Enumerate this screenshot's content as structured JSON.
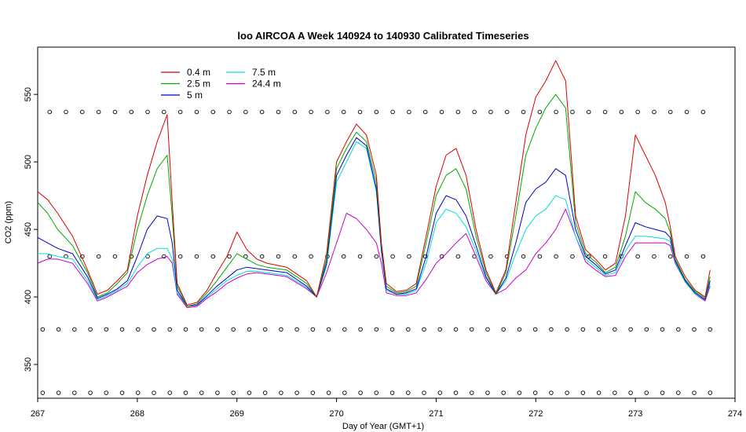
{
  "chart_data": {
    "type": "line",
    "title": "loo AIRCOA A  Week 140924 to 140930  Calibrated Timeseries",
    "xlabel": "Day of Year (GMT+1)",
    "ylabel": "CO2 (ppm)",
    "xlim": [
      267,
      274
    ],
    "ylim": [
      325,
      585
    ],
    "x_ticks": [
      267,
      268,
      269,
      270,
      271,
      272,
      273,
      274
    ],
    "y_ticks": [
      350,
      400,
      450,
      500,
      550
    ],
    "grid": false,
    "legend_position": "top-left",
    "colors": {
      "0.4 m": "#dd0000",
      "2.5 m": "#00aa00",
      "5 m": "#0000cc",
      "7.5 m": "#00dddd",
      "24.4 m": "#cc00cc"
    },
    "series": [
      {
        "name": "0.4 m",
        "color": "#dd0000",
        "x": [
          267.0,
          267.1,
          267.2,
          267.35,
          267.5,
          267.6,
          267.7,
          267.8,
          267.9,
          268.0,
          268.1,
          268.2,
          268.3,
          268.35,
          268.4,
          268.5,
          268.6,
          268.7,
          268.8,
          268.9,
          269.0,
          269.1,
          269.2,
          269.3,
          269.5,
          269.7,
          269.8,
          269.9,
          270.0,
          270.1,
          270.2,
          270.3,
          270.4,
          270.45,
          270.5,
          270.6,
          270.7,
          270.8,
          270.9,
          271.0,
          271.1,
          271.2,
          271.3,
          271.4,
          271.5,
          271.6,
          271.7,
          271.8,
          271.9,
          272.0,
          272.1,
          272.2,
          272.3,
          272.4,
          272.5,
          272.6,
          272.7,
          272.8,
          272.9,
          273.0,
          273.1,
          273.2,
          273.3,
          273.35,
          273.4,
          273.5,
          273.6,
          273.7,
          273.75
        ],
        "y": [
          478,
          472,
          462,
          445,
          420,
          402,
          405,
          412,
          420,
          460,
          490,
          515,
          535,
          470,
          410,
          394,
          396,
          405,
          418,
          430,
          448,
          435,
          428,
          425,
          422,
          412,
          400,
          432,
          500,
          515,
          528,
          520,
          490,
          440,
          410,
          404,
          405,
          410,
          445,
          482,
          505,
          510,
          490,
          450,
          420,
          403,
          420,
          470,
          520,
          548,
          560,
          575,
          560,
          460,
          435,
          428,
          420,
          425,
          460,
          520,
          505,
          490,
          470,
          452,
          430,
          415,
          405,
          400,
          420
        ]
      },
      {
        "name": "2.5 m",
        "color": "#00aa00",
        "x": [
          267.0,
          267.1,
          267.2,
          267.35,
          267.5,
          267.6,
          267.7,
          267.8,
          267.9,
          268.0,
          268.1,
          268.2,
          268.3,
          268.35,
          268.4,
          268.5,
          268.6,
          268.7,
          268.8,
          268.9,
          269.0,
          269.1,
          269.2,
          269.3,
          269.5,
          269.7,
          269.8,
          269.9,
          270.0,
          270.1,
          270.2,
          270.3,
          270.4,
          270.45,
          270.5,
          270.6,
          270.7,
          270.8,
          270.9,
          271.0,
          271.1,
          271.2,
          271.3,
          271.4,
          271.5,
          271.6,
          271.7,
          271.8,
          271.9,
          272.0,
          272.1,
          272.2,
          272.3,
          272.4,
          272.5,
          272.6,
          272.7,
          272.8,
          272.9,
          273.0,
          273.1,
          273.2,
          273.3,
          273.35,
          273.4,
          273.5,
          273.6,
          273.7,
          273.75
        ],
        "y": [
          470,
          462,
          450,
          438,
          418,
          400,
          403,
          410,
          418,
          450,
          475,
          495,
          505,
          460,
          408,
          393,
          395,
          403,
          412,
          422,
          432,
          428,
          424,
          422,
          420,
          410,
          400,
          428,
          495,
          510,
          522,
          515,
          485,
          438,
          408,
          403,
          404,
          408,
          440,
          475,
          490,
          495,
          480,
          445,
          418,
          402,
          418,
          460,
          505,
          525,
          540,
          550,
          540,
          455,
          432,
          426,
          418,
          422,
          445,
          478,
          470,
          465,
          458,
          448,
          428,
          413,
          404,
          399,
          415
        ]
      },
      {
        "name": "5 m",
        "color": "#0000cc",
        "x": [
          267.0,
          267.1,
          267.2,
          267.35,
          267.5,
          267.6,
          267.7,
          267.8,
          267.9,
          268.0,
          268.1,
          268.2,
          268.3,
          268.35,
          268.4,
          268.5,
          268.6,
          268.7,
          268.8,
          268.9,
          269.0,
          269.1,
          269.2,
          269.3,
          269.5,
          269.7,
          269.8,
          269.9,
          270.0,
          270.1,
          270.2,
          270.3,
          270.4,
          270.45,
          270.5,
          270.6,
          270.7,
          270.8,
          270.9,
          271.0,
          271.1,
          271.2,
          271.3,
          271.4,
          271.5,
          271.6,
          271.7,
          271.8,
          271.9,
          272.0,
          272.1,
          272.2,
          272.3,
          272.4,
          272.5,
          272.6,
          272.7,
          272.8,
          272.9,
          273.0,
          273.1,
          273.2,
          273.3,
          273.35,
          273.4,
          273.5,
          273.6,
          273.7,
          273.75
        ],
        "y": [
          444,
          440,
          436,
          432,
          415,
          399,
          402,
          406,
          412,
          430,
          450,
          460,
          458,
          440,
          405,
          393,
          394,
          401,
          408,
          414,
          420,
          422,
          421,
          420,
          418,
          408,
          400,
          425,
          490,
          505,
          518,
          512,
          480,
          435,
          406,
          402,
          403,
          406,
          430,
          462,
          475,
          472,
          460,
          438,
          415,
          402,
          414,
          440,
          470,
          480,
          485,
          495,
          490,
          450,
          430,
          424,
          417,
          420,
          438,
          455,
          452,
          450,
          448,
          444,
          427,
          412,
          403,
          398,
          412
        ]
      },
      {
        "name": "7.5 m",
        "color": "#00dddd",
        "x": [
          267.0,
          267.1,
          267.2,
          267.35,
          267.5,
          267.6,
          267.7,
          267.8,
          267.9,
          268.0,
          268.1,
          268.2,
          268.3,
          268.35,
          268.4,
          268.5,
          268.6,
          268.7,
          268.8,
          268.9,
          269.0,
          269.1,
          269.2,
          269.3,
          269.5,
          269.7,
          269.8,
          269.9,
          270.0,
          270.1,
          270.2,
          270.3,
          270.4,
          270.45,
          270.5,
          270.6,
          270.7,
          270.8,
          270.9,
          271.0,
          271.1,
          271.2,
          271.3,
          271.4,
          271.5,
          271.6,
          271.7,
          271.8,
          271.9,
          272.0,
          272.1,
          272.2,
          272.3,
          272.4,
          272.5,
          272.6,
          272.7,
          272.8,
          272.9,
          273.0,
          273.1,
          273.2,
          273.3,
          273.35,
          273.4,
          273.5,
          273.6,
          273.7,
          273.75
        ],
        "y": [
          432,
          432,
          430,
          428,
          412,
          398,
          401,
          405,
          410,
          422,
          432,
          436,
          436,
          428,
          403,
          393,
          394,
          400,
          406,
          412,
          416,
          419,
          419,
          418,
          416,
          407,
          400,
          423,
          485,
          500,
          515,
          510,
          478,
          433,
          405,
          402,
          402,
          405,
          425,
          455,
          465,
          462,
          452,
          434,
          414,
          402,
          412,
          432,
          450,
          460,
          465,
          475,
          472,
          445,
          428,
          422,
          416,
          418,
          434,
          445,
          445,
          444,
          443,
          441,
          426,
          411,
          402,
          398,
          410
        ]
      },
      {
        "name": "24.4 m",
        "color": "#cc00cc",
        "x": [
          267.0,
          267.1,
          267.2,
          267.35,
          267.5,
          267.6,
          267.7,
          267.8,
          267.9,
          268.0,
          268.1,
          268.2,
          268.3,
          268.35,
          268.4,
          268.5,
          268.6,
          268.7,
          268.8,
          268.9,
          269.0,
          269.1,
          269.2,
          269.3,
          269.5,
          269.7,
          269.8,
          269.9,
          270.0,
          270.1,
          270.2,
          270.3,
          270.4,
          270.45,
          270.5,
          270.6,
          270.7,
          270.8,
          270.9,
          271.0,
          271.1,
          271.2,
          271.3,
          271.4,
          271.5,
          271.6,
          271.7,
          271.8,
          271.9,
          272.0,
          272.1,
          272.2,
          272.3,
          272.4,
          272.5,
          272.6,
          272.7,
          272.8,
          272.9,
          273.0,
          273.1,
          273.2,
          273.3,
          273.35,
          273.4,
          273.5,
          273.6,
          273.7,
          273.75
        ],
        "y": [
          425,
          428,
          428,
          425,
          410,
          397,
          400,
          404,
          408,
          418,
          424,
          428,
          430,
          425,
          402,
          392,
          393,
          399,
          404,
          410,
          414,
          417,
          418,
          417,
          415,
          406,
          400,
          418,
          440,
          462,
          458,
          450,
          440,
          425,
          403,
          401,
          401,
          403,
          413,
          425,
          432,
          440,
          447,
          430,
          412,
          402,
          406,
          414,
          420,
          432,
          440,
          450,
          465,
          445,
          426,
          420,
          415,
          416,
          430,
          440,
          440,
          440,
          440,
          438,
          425,
          411,
          402,
          397,
          408
        ]
      }
    ],
    "marker_rows": [
      {
        "y": 537,
        "x_start": 267.12,
        "x_end": 273.68,
        "count": 41
      },
      {
        "y": 430,
        "x_start": 267.12,
        "x_end": 273.68,
        "count": 41
      },
      {
        "y": 376,
        "x_start": 267.05,
        "x_end": 273.75,
        "count": 43
      },
      {
        "y": 329,
        "x_start": 267.05,
        "x_end": 273.75,
        "count": 43
      }
    ]
  }
}
